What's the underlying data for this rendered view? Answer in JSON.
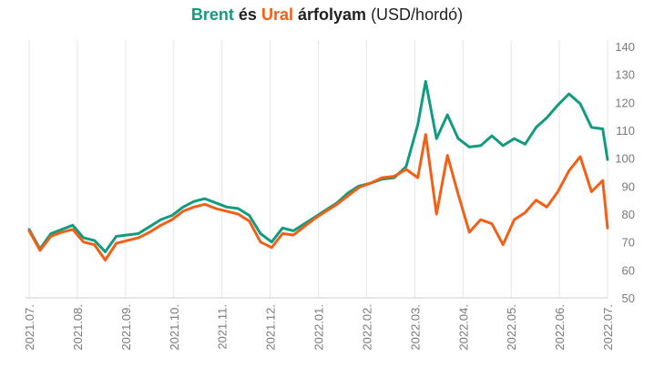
{
  "title": {
    "brent_word": "Brent",
    "conj": "és",
    "ural_word": "Ural",
    "main": "árfolyam",
    "unit": "(USD/hordó)"
  },
  "colors": {
    "brent": "#119b7f",
    "ural": "#f25f16",
    "grid": "#e6e6e6",
    "axis_text": "#7a7a7a",
    "title_text": "#222222"
  },
  "chart_data": {
    "type": "line",
    "title": "Brent és Ural árfolyam (USD/hordó)",
    "xlabel": "",
    "ylabel": "",
    "ylim": [
      50,
      140
    ],
    "y_ticks": [
      50,
      60,
      70,
      80,
      90,
      100,
      110,
      120,
      130,
      140
    ],
    "y_axis_position": "right",
    "grid": "vertical",
    "x_ticks": [
      "2021.07.",
      "2021.08.",
      "2021.09.",
      "2021.10.",
      "2021.11.",
      "2021.12.",
      "2022.01.",
      "2022.02.",
      "2022.03.",
      "2022.04.",
      "2022.05.",
      "2022.06.",
      "2022.07."
    ],
    "x": [
      "2021.07.01",
      "2021.07.08",
      "2021.07.15",
      "2021.07.22",
      "2021.07.29",
      "2021.08.05",
      "2021.08.12",
      "2021.08.19",
      "2021.08.26",
      "2021.09.02",
      "2021.09.09",
      "2021.09.16",
      "2021.09.23",
      "2021.09.30",
      "2021.10.07",
      "2021.10.14",
      "2021.10.21",
      "2021.10.28",
      "2021.11.04",
      "2021.11.11",
      "2021.11.18",
      "2021.11.25",
      "2021.12.02",
      "2021.12.09",
      "2021.12.16",
      "2021.12.23",
      "2021.12.30",
      "2022.01.06",
      "2022.01.13",
      "2022.01.20",
      "2022.01.27",
      "2022.02.03",
      "2022.02.10",
      "2022.02.17",
      "2022.02.24",
      "2022.03.03",
      "2022.03.08",
      "2022.03.15",
      "2022.03.22",
      "2022.03.29",
      "2022.04.05",
      "2022.04.12",
      "2022.04.19",
      "2022.04.26",
      "2022.05.03",
      "2022.05.10",
      "2022.05.17",
      "2022.05.24",
      "2022.05.31",
      "2022.06.07",
      "2022.06.14",
      "2022.06.21",
      "2022.06.28",
      "2022.07.01"
    ],
    "series": [
      {
        "name": "Brent",
        "color": "#119b7f",
        "values": [
          74.5,
          67.5,
          73.0,
          74.5,
          76.0,
          71.5,
          70.5,
          66.5,
          72.0,
          72.5,
          73.0,
          75.5,
          78.0,
          79.5,
          82.5,
          84.5,
          85.5,
          84.0,
          82.5,
          82.0,
          79.5,
          73.0,
          70.0,
          75.0,
          74.0,
          76.5,
          79.0,
          81.5,
          84.0,
          87.5,
          90.0,
          91.0,
          92.5,
          93.0,
          97.0,
          112.0,
          127.5,
          107.0,
          115.5,
          107.0,
          104.0,
          104.5,
          108.0,
          104.5,
          107.0,
          105.0,
          111.0,
          114.5,
          119.0,
          123.0,
          119.5,
          111.0,
          110.5,
          99.5
        ]
      },
      {
        "name": "Ural",
        "color": "#f25f16",
        "values": [
          74.0,
          67.0,
          72.0,
          73.5,
          74.5,
          70.0,
          69.0,
          63.5,
          69.5,
          70.5,
          71.5,
          73.5,
          76.0,
          78.0,
          81.0,
          82.5,
          83.5,
          82.0,
          81.0,
          80.0,
          77.5,
          70.0,
          68.0,
          73.0,
          72.5,
          75.5,
          78.5,
          81.0,
          83.5,
          86.5,
          89.5,
          91.0,
          93.0,
          93.5,
          96.0,
          93.0,
          108.5,
          80.0,
          101.0,
          87.0,
          73.5,
          78.0,
          76.5,
          69.0,
          78.0,
          80.5,
          85.0,
          82.5,
          88.0,
          95.5,
          100.5,
          88.0,
          92.0,
          75.0
        ]
      }
    ],
    "legend": "in title"
  }
}
